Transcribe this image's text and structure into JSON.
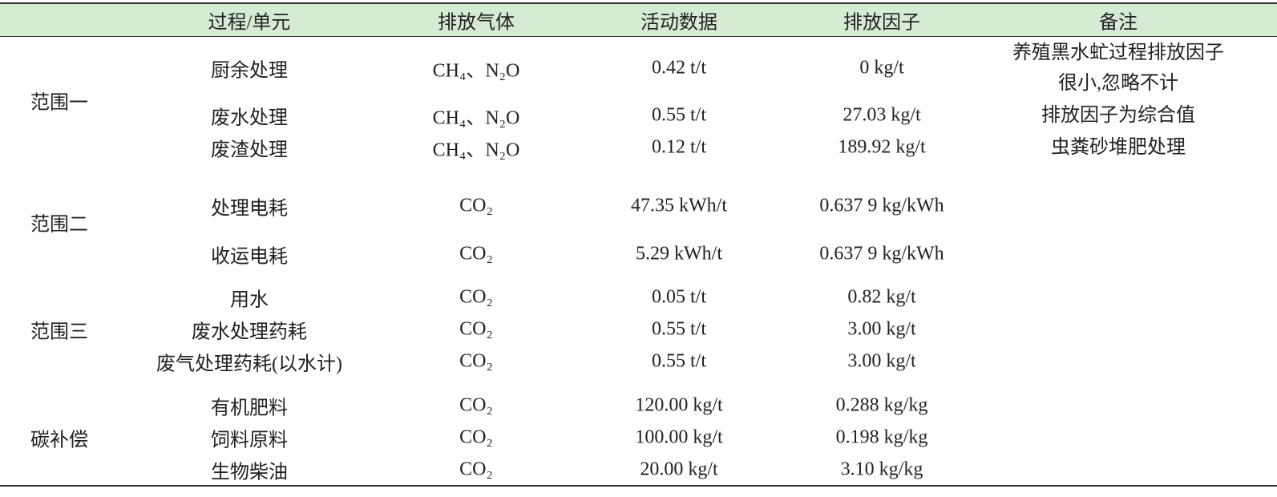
{
  "header": [
    "过程/单元",
    "排放气体",
    "活动数据",
    "排放因子",
    "备注"
  ],
  "groups": [
    {
      "label": "范围一",
      "rows": [
        {
          "process": "厨余处理",
          "gas": "CH₄、N₂O",
          "activity": "0.42 t/t",
          "factor": "0 kg/t",
          "note": "养殖黑水虻过程排放因子很小,忽略不计"
        },
        {
          "process": "废水处理",
          "gas": "CH₄、N₂O",
          "activity": "0.55 t/t",
          "factor": "27.03 kg/t",
          "note": "排放因子为综合值"
        },
        {
          "process": "废渣处理",
          "gas": "CH₄、N₂O",
          "activity": "0.12 t/t",
          "factor": "189.92 kg/t",
          "note": "虫粪砂堆肥处理"
        }
      ]
    },
    {
      "label": "范围二",
      "rows": [
        {
          "process": "处理电耗",
          "gas": "CO₂",
          "activity": "47.35 kWh/t",
          "factor": "0.637 9 kg/kWh"
        },
        {
          "process": "收运电耗",
          "gas": "CO₂",
          "activity": "5.29 kWh/t",
          "factor": "0.637 9 kg/kWh"
        }
      ]
    },
    {
      "label": "范围三",
      "rows": [
        {
          "process": "用水",
          "gas": "CO₂",
          "activity": "0.05 t/t",
          "factor": "0.82 kg/t"
        },
        {
          "process": "废水处理药耗",
          "gas": "CO₂",
          "activity": "0.55 t/t",
          "factor": "3.00 kg/t"
        },
        {
          "process": "废气处理药耗(以水计)",
          "gas": "CO₂",
          "activity": "0.55 t/t",
          "factor": "3.00 kg/t"
        }
      ]
    },
    {
      "label": "碳补偿",
      "rows": [
        {
          "process": "有机肥料",
          "gas": "CO₂",
          "activity": "120.00 kg/t",
          "factor": "0.288 kg/kg"
        },
        {
          "process": "饲料原料",
          "gas": "CO₂",
          "activity": "100.00 kg/t",
          "factor": "0.198 kg/kg"
        },
        {
          "process": "生物柴油",
          "gas": "CO₂",
          "activity": "20.00 kg/t",
          "factor": "3.10 kg/kg"
        }
      ]
    }
  ]
}
